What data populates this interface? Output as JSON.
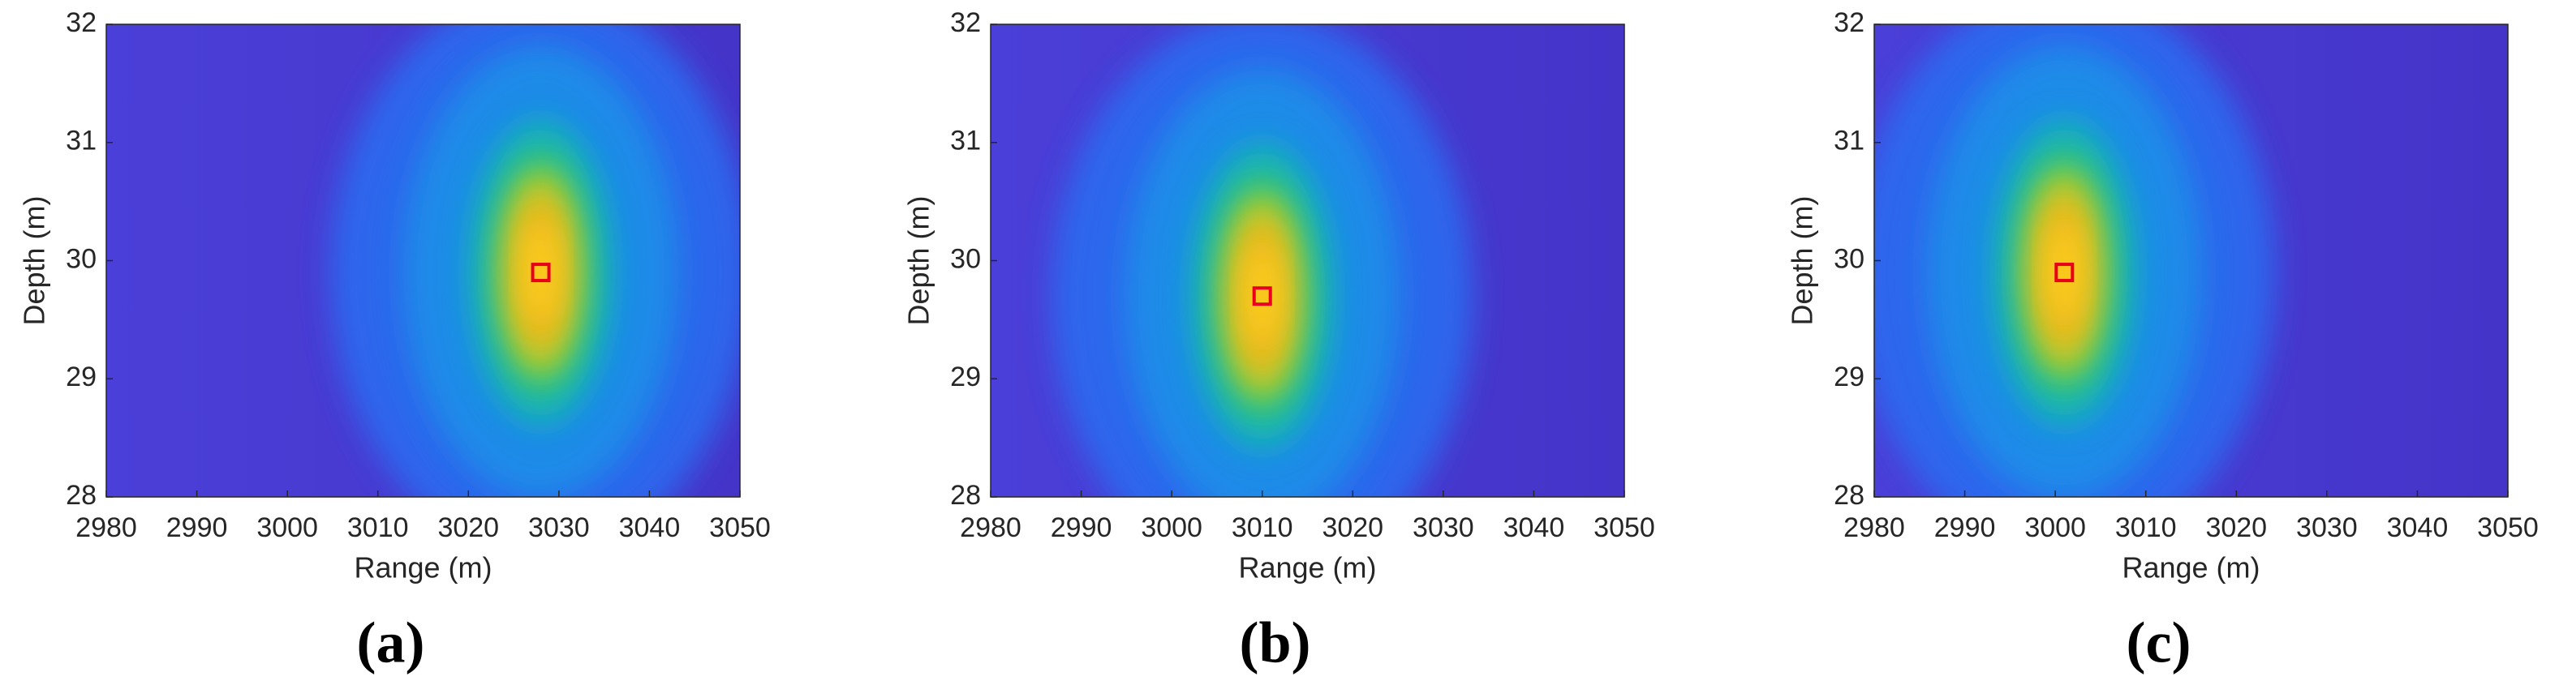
{
  "chart_data": [
    {
      "type": "heatmap",
      "label": "(a)",
      "xlabel": "Range (m)",
      "ylabel": "Depth (m)",
      "xlim": [
        2980,
        3050
      ],
      "xticks": [
        2980,
        2990,
        3000,
        3010,
        3020,
        3030,
        3040,
        3050
      ],
      "ylim": [
        28,
        32
      ],
      "yticks": [
        28,
        29,
        30,
        31,
        32
      ],
      "peak": {
        "x": 3028,
        "y": 29.9
      },
      "peak_color": "#e8001c"
    },
    {
      "type": "heatmap",
      "label": "(b)",
      "xlabel": "Range (m)",
      "ylabel": "Depth (m)",
      "xlim": [
        2980,
        3050
      ],
      "xticks": [
        2980,
        2990,
        3000,
        3010,
        3020,
        3030,
        3040,
        3050
      ],
      "ylim": [
        28,
        32
      ],
      "yticks": [
        28,
        29,
        30,
        31,
        32
      ],
      "peak": {
        "x": 3010,
        "y": 29.7
      },
      "peak_color": "#e8001c"
    },
    {
      "type": "heatmap",
      "label": "(c)",
      "xlabel": "Range (m)",
      "ylabel": "Depth (m)",
      "xlim": [
        2980,
        3050
      ],
      "xticks": [
        2980,
        2990,
        3000,
        3010,
        3020,
        3030,
        3040,
        3050
      ],
      "ylim": [
        28,
        32
      ],
      "yticks": [
        28,
        29,
        30,
        31,
        32
      ],
      "peak": {
        "x": 3001,
        "y": 29.9
      },
      "peak_color": "#e8001c"
    }
  ]
}
